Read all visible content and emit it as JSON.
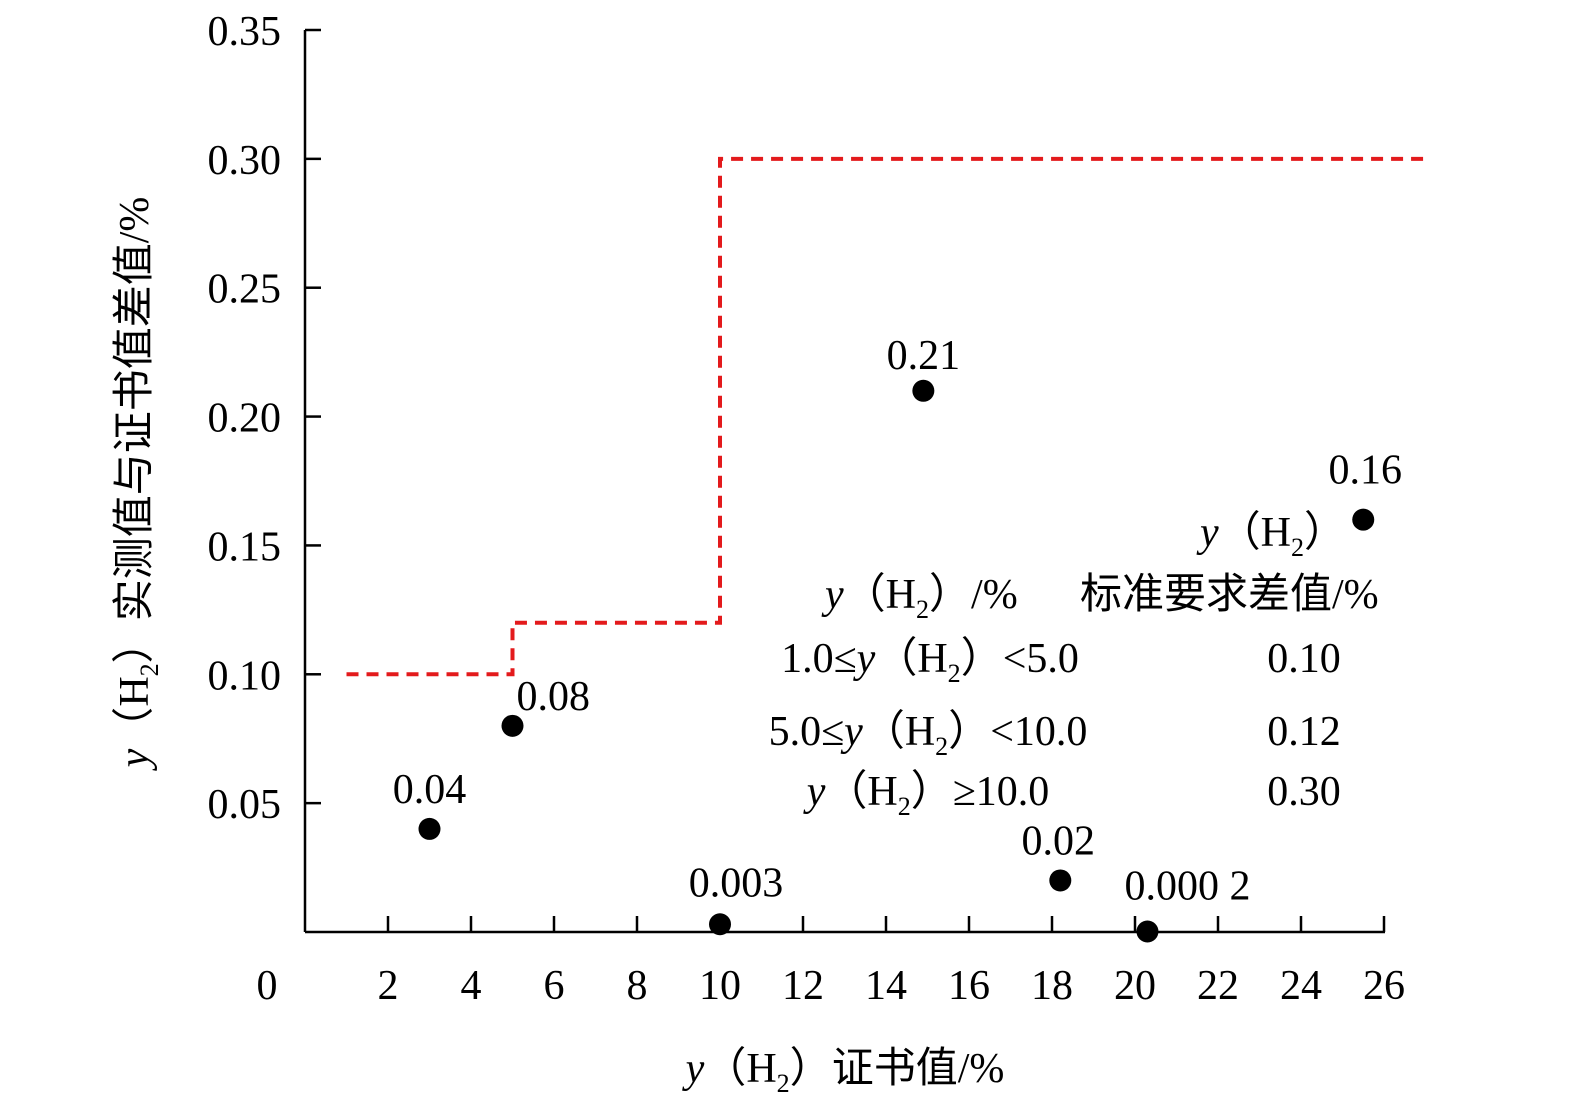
{
  "chart_data": {
    "type": "scatter",
    "title": "",
    "xlabel": {
      "var": "y",
      "open": "（",
      "chem": "H",
      "sub": "2",
      "close": "）",
      "text": "证书值/%"
    },
    "ylabel": {
      "var": "y",
      "open": "（",
      "chem": "H",
      "sub": "2",
      "close": "）",
      "text": "实测值与证书值差值/%"
    },
    "xlim": [
      0,
      26
    ],
    "ylim": [
      0,
      0.35
    ],
    "x_ticks": [
      0,
      2,
      4,
      6,
      8,
      10,
      12,
      14,
      16,
      18,
      20,
      22,
      24,
      26
    ],
    "x_tick_labels": [
      "0",
      "2",
      "4",
      "6",
      "8",
      "10",
      "12",
      "14",
      "16",
      "18",
      "20",
      "22",
      "24",
      "26"
    ],
    "y_ticks": [
      0.05,
      0.1,
      0.15,
      0.2,
      0.25,
      0.3,
      0.35
    ],
    "y_tick_labels": [
      "0.05",
      "0.10",
      "0.15",
      "0.20",
      "0.25",
      "0.30",
      "0.35"
    ],
    "grid": false,
    "points": [
      {
        "x": 3.0,
        "y": 0.04,
        "label": "0.04"
      },
      {
        "x": 5.0,
        "y": 0.08,
        "label": "0.08"
      },
      {
        "x": 10.0,
        "y": 0.003,
        "label": "0.003"
      },
      {
        "x": 14.9,
        "y": 0.21,
        "label": "0.21"
      },
      {
        "x": 18.2,
        "y": 0.02,
        "label": "0.02"
      },
      {
        "x": 20.3,
        "y": 0.0002,
        "label": "0.000 2"
      },
      {
        "x": 25.5,
        "y": 0.16,
        "label": "0.16"
      }
    ],
    "point_color": "#000000",
    "threshold_series": {
      "color": "#e31a1c",
      "style": "dashed",
      "points": [
        [
          1.0,
          0.1
        ],
        [
          5.0,
          0.1
        ],
        [
          5.0,
          0.12
        ],
        [
          10.0,
          0.12
        ],
        [
          10.0,
          0.3
        ],
        [
          27.0,
          0.3
        ]
      ]
    },
    "legend": {
      "placement": "right",
      "top_var_label": {
        "var": "y",
        "open": "（",
        "chem": "H",
        "sub": "2",
        "close": "）"
      },
      "header": {
        "left": {
          "var": "y",
          "open": "（",
          "chem": "H",
          "sub": "2",
          "close": "）",
          "text": "/%"
        },
        "right": "标准要求差值/%"
      },
      "rows": [
        {
          "prefix": "1.0≤",
          "var": "y",
          "open": "（",
          "chem": "H",
          "sub": "2",
          "close": "）",
          "suffix": "<5.0",
          "value": "0.10"
        },
        {
          "prefix": "5.0≤",
          "var": "y",
          "open": "（",
          "chem": "H",
          "sub": "2",
          "close": "）",
          "suffix": "<10.0",
          "value": "0.12"
        },
        {
          "prefix": "",
          "var": "y",
          "open": "（",
          "chem": "H",
          "sub": "2",
          "close": "）",
          "suffix": "≥10.0",
          "value": "0.30"
        }
      ]
    }
  }
}
